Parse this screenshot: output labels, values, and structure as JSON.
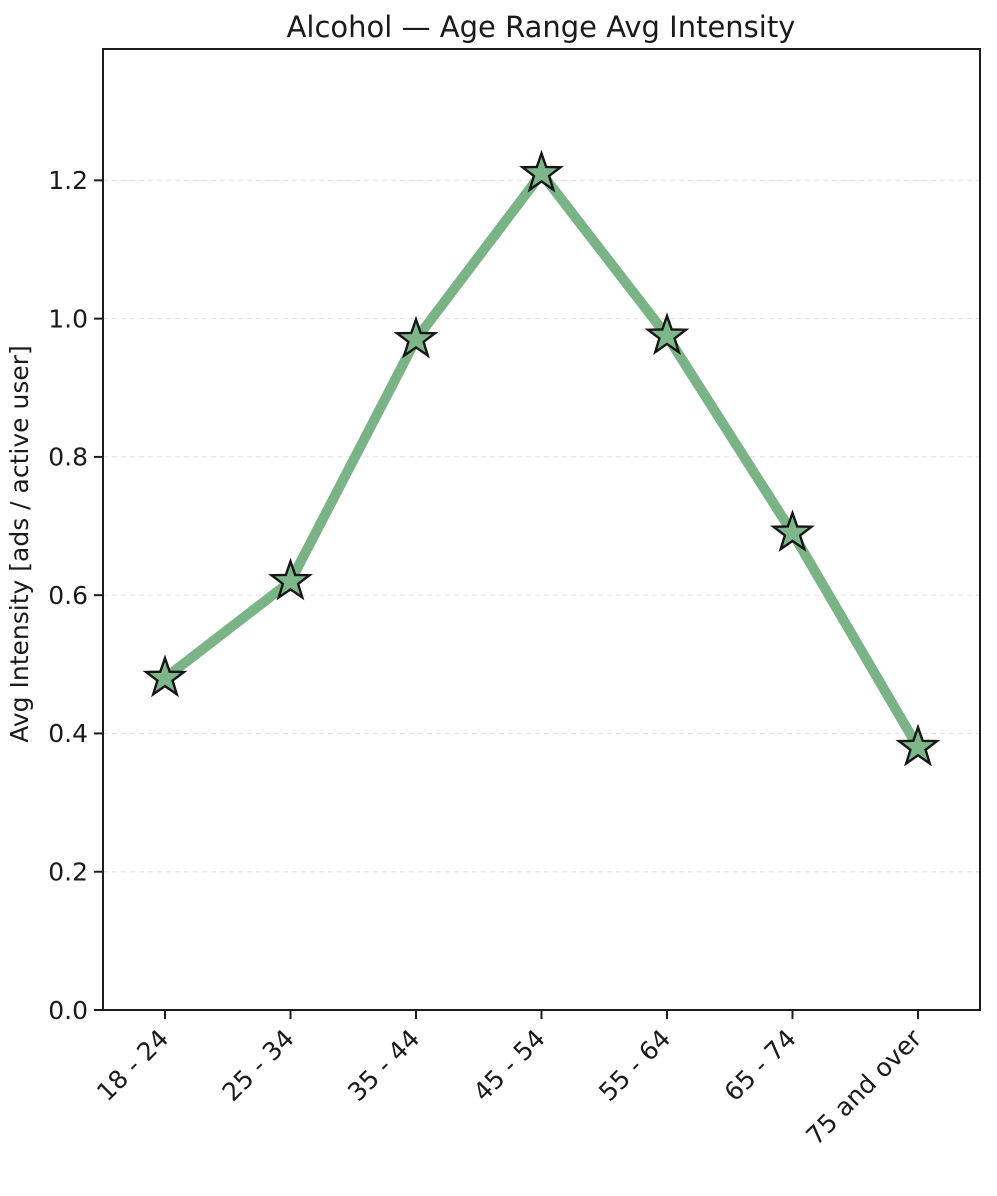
{
  "chart_data": {
    "type": "line",
    "title": "Alcohol — Age Range Avg Intensity",
    "ylabel": "Avg Intensity [ads / active user]",
    "xlabel": "",
    "categories": [
      "18 - 24",
      "25 - 34",
      "35 - 44",
      "45 - 54",
      "55 - 64",
      "65 - 74",
      "75 and over"
    ],
    "values": [
      0.48,
      0.62,
      0.97,
      1.21,
      0.975,
      0.69,
      0.38
    ],
    "yticks": [
      "0.0",
      "0.2",
      "0.4",
      "0.6",
      "0.8",
      "1.0",
      "1.2"
    ],
    "ytick_values": [
      0,
      0.2,
      0.4,
      0.6,
      0.8,
      1.0,
      1.2
    ],
    "ylim": [
      0,
      1.39
    ],
    "legend": "none",
    "grid": {
      "axis": "y",
      "style": "dashed",
      "color": "#e4e4e4"
    },
    "line": {
      "color": "#7ab386",
      "width": 10
    },
    "marker": {
      "shape": "star",
      "fill": "#7db689",
      "edge_color": "#161616",
      "size": 40
    },
    "axis_color": "#1c1c1c",
    "text_color": "#1a1a1a",
    "background": "#ffffff"
  }
}
